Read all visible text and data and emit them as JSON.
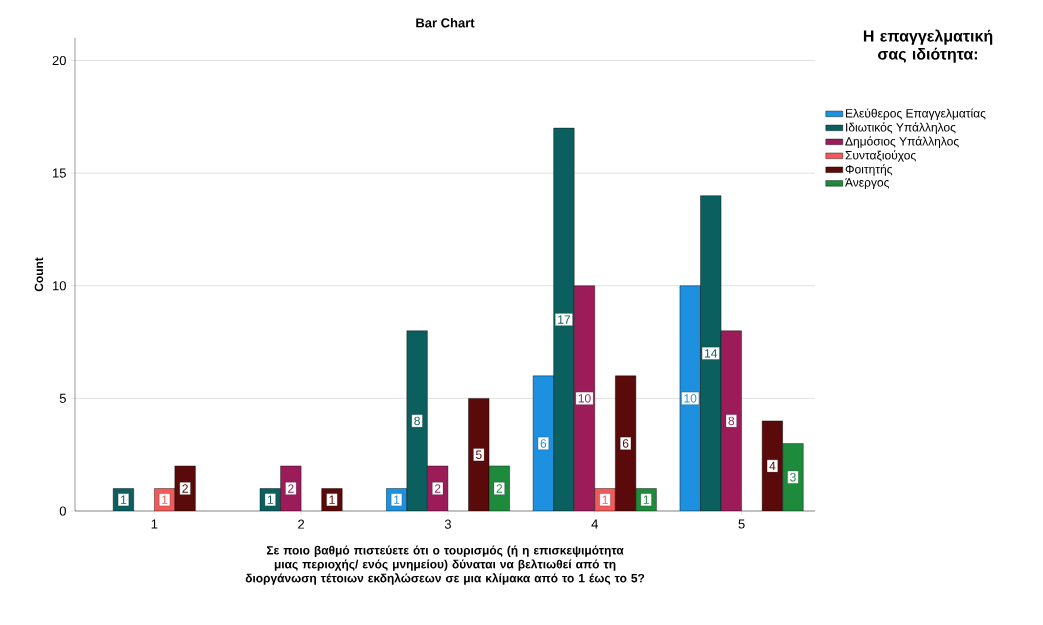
{
  "chart_data": {
    "type": "bar",
    "title": "Bar Chart",
    "xlabel": "Σε ποιο βαθμό πιστεύετε ότι ο τουρισμός (ή η επισκεψιμότητα μιας περιοχής/ ενός μνημείου) δύναται να βελτιωθεί από τη διοργάνωση τέτοιων εκδηλώσεων σε μια κλίμακα από το 1 έως το 5?",
    "ylabel": "Count",
    "legend_title": "Η επαγγελματική σας ιδιότητα:",
    "categories": [
      "1",
      "2",
      "3",
      "4",
      "5"
    ],
    "series": [
      {
        "name": "Ελεύθερος Επαγγελματίας",
        "color": "#1e90e0",
        "values": [
          null,
          null,
          1,
          6,
          10
        ]
      },
      {
        "name": "Ιδιωτικός Υπάλληλος",
        "color": "#0b5f5f",
        "values": [
          1,
          1,
          8,
          17,
          14
        ]
      },
      {
        "name": "Δημόσιος Υπάλληλος",
        "color": "#9c1c5a",
        "values": [
          null,
          2,
          2,
          10,
          8
        ]
      },
      {
        "name": "Συνταξιούχος",
        "color": "#f05a5a",
        "values": [
          1,
          null,
          null,
          1,
          null
        ]
      },
      {
        "name": "Φοιτητής",
        "color": "#5a0a0a",
        "values": [
          2,
          1,
          5,
          6,
          4
        ]
      },
      {
        "name": "Άνεργος",
        "color": "#1e8a3c",
        "values": [
          null,
          null,
          2,
          1,
          3
        ]
      }
    ],
    "ylim": [
      0,
      21
    ],
    "yticks": [
      0,
      5,
      10,
      15,
      20
    ],
    "grid": "y",
    "legend": "top right",
    "data_labels": true
  }
}
